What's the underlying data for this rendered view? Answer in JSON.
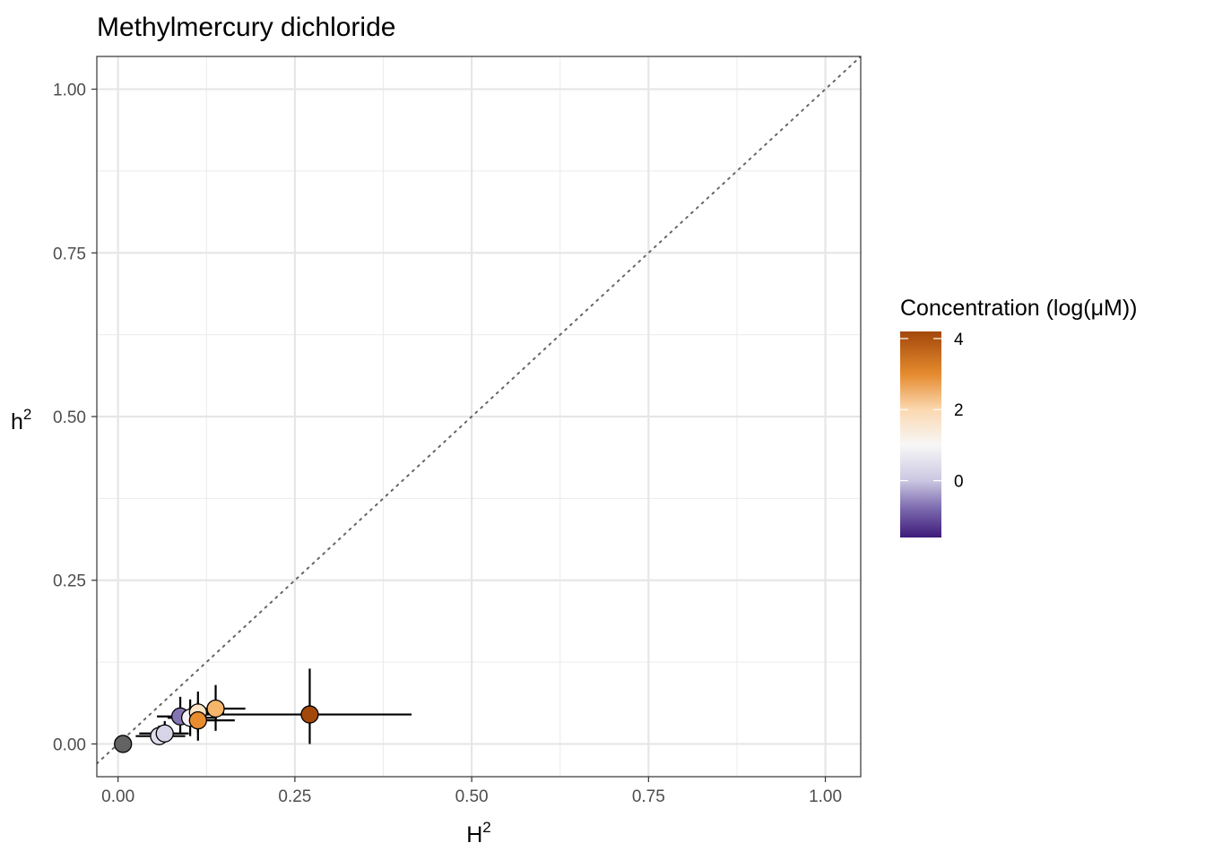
{
  "chart_data": {
    "type": "scatter",
    "title": "Methylmercury dichloride",
    "xlabel_base": "H",
    "xlabel_sup": "2",
    "ylabel_base": "h",
    "ylabel_sup": "2",
    "xlim": [
      -0.03,
      1.05
    ],
    "ylim": [
      -0.05,
      1.05
    ],
    "x_ticks": [
      0.0,
      0.25,
      0.5,
      0.75,
      1.0
    ],
    "x_tick_labels": [
      "0.00",
      "0.25",
      "0.50",
      "0.75",
      "1.00"
    ],
    "y_ticks": [
      0.0,
      0.25,
      0.5,
      0.75,
      1.0
    ],
    "y_tick_labels": [
      "0.00",
      "0.25",
      "0.50",
      "0.75",
      "1.00"
    ],
    "grid": true,
    "reference_line": "y = x (dotted)",
    "legend": {
      "title": "Concentration (log(μM))",
      "placement": "right",
      "type": "colorbar",
      "range": [
        -1.6,
        4.2
      ],
      "ticks": [
        0,
        2,
        4
      ],
      "tick_labels": [
        "0",
        "2",
        "4"
      ],
      "colors": [
        {
          "value": -1.6,
          "color": "#3f1b7a"
        },
        {
          "value": -0.8,
          "color": "#7a68ad"
        },
        {
          "value": 0.0,
          "color": "#cbc7e1"
        },
        {
          "value": 1.0,
          "color": "#f7f7f7"
        },
        {
          "value": 2.0,
          "color": "#fbd8b0"
        },
        {
          "value": 3.0,
          "color": "#e58b2e"
        },
        {
          "value": 4.2,
          "color": "#a3480b"
        }
      ]
    },
    "points": [
      {
        "x": 0.007,
        "y": 0.0,
        "color": "#636363",
        "xerr": null,
        "yerr": null
      },
      {
        "x": 0.058,
        "y": 0.012,
        "color": "#e1dfee",
        "xerr": [
          0.025,
          0.095
        ],
        "yerr": [
          0.0,
          0.028
        ]
      },
      {
        "x": 0.066,
        "y": 0.016,
        "color": "#d7d4e8",
        "xerr": [
          0.03,
          0.1
        ],
        "yerr": [
          0.002,
          0.035
        ]
      },
      {
        "x": 0.088,
        "y": 0.042,
        "color": "#8474b3",
        "xerr": [
          0.055,
          0.125
        ],
        "yerr": [
          0.015,
          0.072
        ]
      },
      {
        "x": 0.102,
        "y": 0.04,
        "color": "#f3f1f7",
        "xerr": [
          0.07,
          0.14
        ],
        "yerr": [
          0.012,
          0.068
        ]
      },
      {
        "x": 0.113,
        "y": 0.048,
        "color": "#fde2c3",
        "xerr": [
          0.08,
          0.15
        ],
        "yerr": [
          0.018,
          0.08
        ]
      },
      {
        "x": 0.138,
        "y": 0.054,
        "color": "#f5b56a",
        "xerr": [
          0.1,
          0.18
        ],
        "yerr": [
          0.02,
          0.09
        ]
      },
      {
        "x": 0.113,
        "y": 0.036,
        "color": "#e88c30",
        "xerr": [
          0.08,
          0.165
        ],
        "yerr": [
          0.005,
          0.065
        ]
      },
      {
        "x": 0.271,
        "y": 0.045,
        "color": "#a3480b",
        "xerr": [
          0.08,
          0.415
        ],
        "yerr": [
          0.0,
          0.115
        ]
      }
    ]
  }
}
